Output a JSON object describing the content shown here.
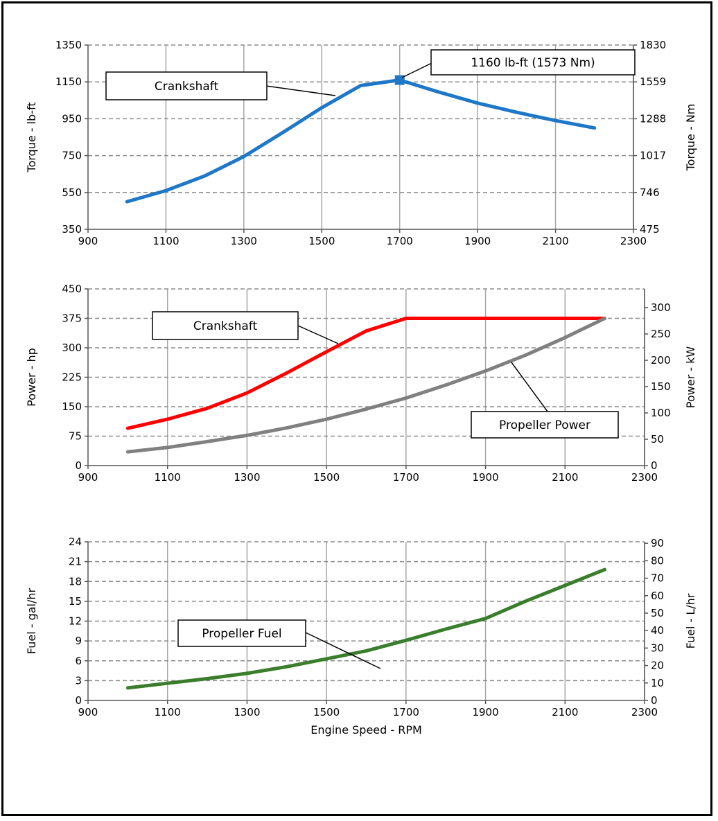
{
  "colors": {
    "torque": "#1F77C8",
    "crankshaft_power": "#FF0000",
    "propeller_power": "#808080",
    "propeller_fuel": "#3A7D2C",
    "grid_vertical": "#A6A6A6",
    "grid_horizontal": "#8C8C8C"
  },
  "chart_data": [
    {
      "type": "line",
      "name": "torque-chart",
      "xlabel": "",
      "ylabel": "Torque - lb-ft",
      "y2label": "Torque - Nm",
      "xlim": [
        900,
        2300
      ],
      "ylim": [
        350,
        1350
      ],
      "x_ticks": [
        "900",
        "1100",
        "1300",
        "1500",
        "1700",
        "1900",
        "2100",
        "2300"
      ],
      "y_ticks": [
        "350",
        "550",
        "750",
        "950",
        "1150",
        "1350"
      ],
      "y2_ticks": [
        "475",
        "746",
        "1017",
        "1288",
        "1559",
        "1830"
      ],
      "grid": true,
      "series": [
        {
          "color_key": "torque",
          "x": [
            1000,
            1100,
            1200,
            1300,
            1400,
            1500,
            1600,
            1700,
            1800,
            1900,
            2000,
            2100,
            2200
          ],
          "y": [
            500,
            560,
            640,
            745,
            875,
            1010,
            1130,
            1160,
            1095,
            1035,
            985,
            940,
            900
          ]
        }
      ],
      "marker": {
        "x": 1700,
        "y": 1160
      },
      "callouts": [
        {
          "text": "Crankshaft"
        },
        {
          "text": "1160 lb-ft (1573 Nm)"
        }
      ]
    },
    {
      "type": "line",
      "name": "power-chart",
      "xlabel": "",
      "ylabel": "Power - hp",
      "y2label": "Power - kW",
      "xlim": [
        900,
        2300
      ],
      "ylim": [
        0,
        450
      ],
      "y2lim": [
        0,
        335.6
      ],
      "x_ticks": [
        "900",
        "1100",
        "1300",
        "1500",
        "1700",
        "1900",
        "2100",
        "2300"
      ],
      "y_ticks": [
        "0",
        "75",
        "150",
        "225",
        "300",
        "375",
        "450"
      ],
      "y2_ticks": [
        "0",
        "50",
        "100",
        "150",
        "200",
        "250",
        "300"
      ],
      "grid": true,
      "series": [
        {
          "color_key": "crankshaft_power",
          "x": [
            1000,
            1100,
            1200,
            1300,
            1400,
            1500,
            1600,
            1700,
            1800,
            1900,
            2000,
            2100,
            2200
          ],
          "y": [
            95,
            118,
            146,
            185,
            236,
            290,
            343,
            375,
            375,
            375,
            375,
            375,
            375
          ]
        },
        {
          "color_key": "propeller_power",
          "x": [
            1000,
            1100,
            1200,
            1300,
            1400,
            1500,
            1600,
            1700,
            1800,
            1900,
            2000,
            2100,
            2200
          ],
          "y": [
            35,
            46,
            61,
            77,
            96,
            118,
            144,
            172,
            205,
            241,
            281,
            326,
            375
          ]
        }
      ],
      "callouts": [
        {
          "text": "Crankshaft"
        },
        {
          "text": "Propeller Power"
        }
      ]
    },
    {
      "type": "line",
      "name": "fuel-chart",
      "xlabel": "Engine Speed - RPM",
      "ylabel": "Fuel - gal/hr",
      "y2label": "Fuel - L/hr",
      "xlim": [
        900,
        2300
      ],
      "ylim": [
        0,
        24
      ],
      "y2lim": [
        0,
        90.85
      ],
      "x_ticks": [
        "900",
        "1100",
        "1300",
        "1500",
        "1700",
        "1900",
        "2100",
        "2300"
      ],
      "y_ticks": [
        "0",
        "3",
        "6",
        "9",
        "12",
        "15",
        "18",
        "21",
        "24"
      ],
      "y2_ticks": [
        "0",
        "10",
        "20",
        "30",
        "40",
        "50",
        "60",
        "70",
        "80",
        "90"
      ],
      "grid": true,
      "series": [
        {
          "color_key": "propeller_fuel",
          "x": [
            1000,
            1100,
            1200,
            1300,
            1400,
            1500,
            1600,
            1700,
            1800,
            1900,
            2000,
            2100,
            2200
          ],
          "y": [
            1.9,
            2.6,
            3.3,
            4.1,
            5.1,
            6.3,
            7.5,
            9.1,
            10.8,
            12.4,
            15.0,
            17.4,
            19.8
          ]
        }
      ],
      "callouts": [
        {
          "text": "Propeller Fuel"
        }
      ]
    }
  ]
}
